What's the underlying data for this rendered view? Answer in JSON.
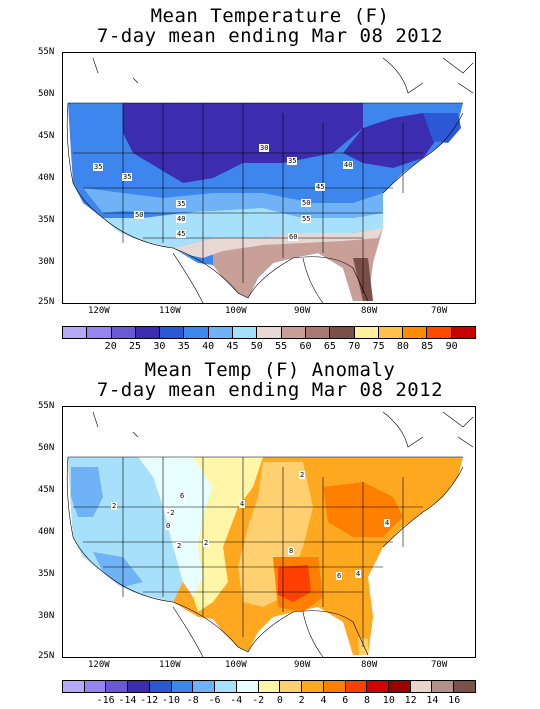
{
  "map1": {
    "title_line1": "Mean Temperature (F)",
    "title_line2": "7-day mean ending Mar 08 2012",
    "lat_labels": [
      "55N",
      "50N",
      "45N",
      "40N",
      "35N",
      "30N",
      "25N"
    ],
    "lon_labels": [
      "120W",
      "110W",
      "100W",
      "90W",
      "80W",
      "70W"
    ],
    "contour_labels": [
      "30",
      "35",
      "35",
      "40",
      "45",
      "50",
      "55",
      "60",
      "35",
      "40",
      "45",
      "50",
      "35"
    ],
    "colorbar": {
      "colors": [
        "#b6aaf6",
        "#9685ee",
        "#6a58d5",
        "#3c2cb0",
        "#2b59d6",
        "#3d86ee",
        "#6fb3f6",
        "#a7e0fb",
        "#e8d8d4",
        "#c8a098",
        "#a87a72",
        "#7a4f48",
        "#fff0a0",
        "#ffc04c",
        "#ff8c00",
        "#ff4a00",
        "#c80000"
      ],
      "labels": [
        "20",
        "25",
        "30",
        "35",
        "40",
        "45",
        "50",
        "55",
        "60",
        "65",
        "70",
        "75",
        "80",
        "85",
        "90"
      ]
    }
  },
  "map2": {
    "title_line1": "Mean Temp (F) Anomaly",
    "title_line2": "7-day mean ending Mar 08 2012",
    "lat_labels": [
      "55N",
      "50N",
      "45N",
      "40N",
      "35N",
      "30N",
      "25N"
    ],
    "lon_labels": [
      "120W",
      "110W",
      "100W",
      "90W",
      "80W",
      "70W"
    ],
    "contour_labels": [
      "2",
      "4",
      "6",
      "8",
      "4",
      "2",
      "6",
      "4",
      "-2",
      "0",
      "2",
      "2"
    ],
    "colorbar": {
      "colors": [
        "#b6aaf6",
        "#9685ee",
        "#6a58d5",
        "#3c2cb0",
        "#2b59d6",
        "#3d86ee",
        "#6fb3f6",
        "#a7e0fb",
        "#e8ffff",
        "#fff6a8",
        "#ffd070",
        "#ffa820",
        "#ff8000",
        "#ff4000",
        "#d40000",
        "#9c0000",
        "#e8d4c8",
        "#b4908a",
        "#7a504a"
      ],
      "labels": [
        "-16",
        "-14",
        "-12",
        "-10",
        "-8",
        "-6",
        "-4",
        "-2",
        "0",
        "2",
        "4",
        "6",
        "8",
        "10",
        "12",
        "14",
        "16"
      ]
    }
  }
}
